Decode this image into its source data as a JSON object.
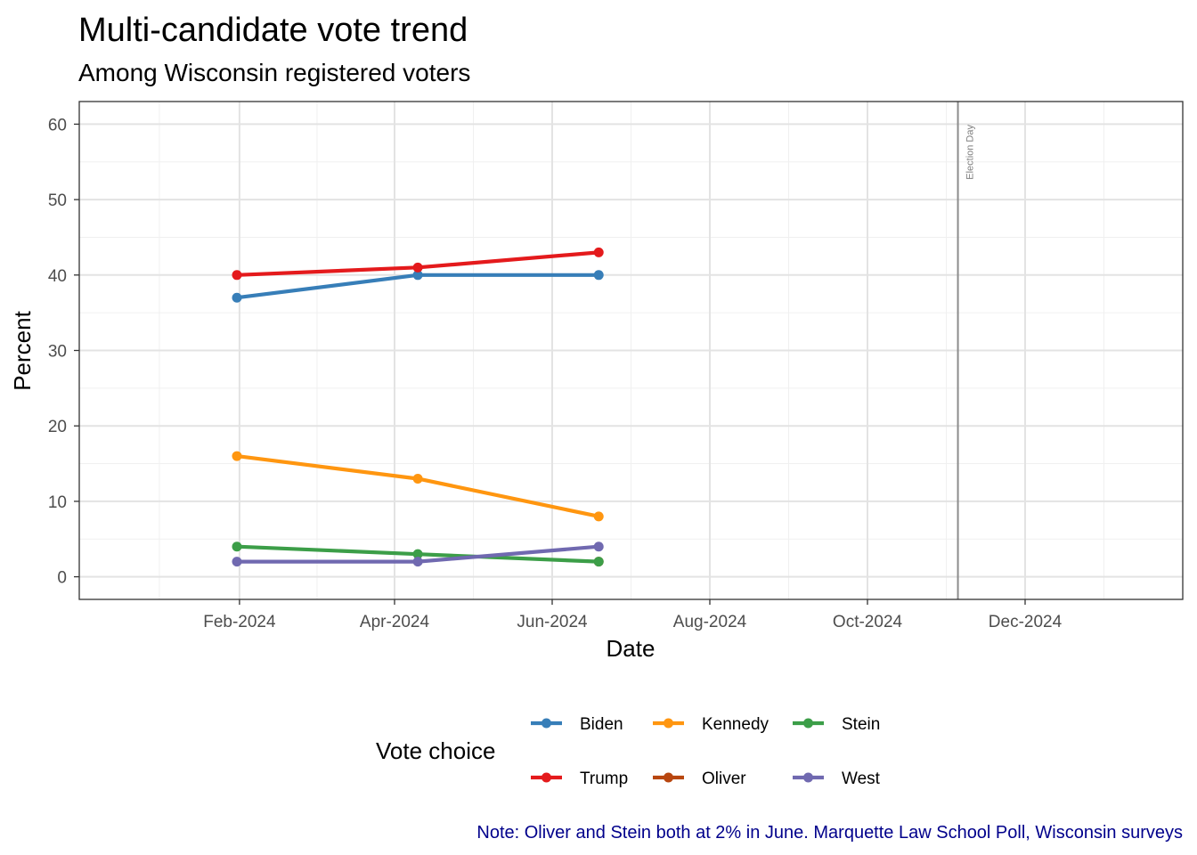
{
  "chart_data": {
    "type": "line",
    "title": "Multi-candidate vote trend",
    "subtitle": "Among Wisconsin registered voters",
    "xlabel": "Date",
    "ylabel": "Percent",
    "caption": "Note: Oliver and Stein both at 2% in June. Marquette Law School Poll, Wisconsin surveys",
    "caption_color": "#00008B",
    "grid": true,
    "legend_position": "bottom",
    "legend_title": "Vote choice",
    "ylim": [
      -3,
      63
    ],
    "yticks": [
      0,
      10,
      20,
      30,
      40,
      50,
      60
    ],
    "xlim": [
      "2023-12-01",
      "2025-01-31"
    ],
    "xticks": [
      {
        "date": "2024-02-01",
        "label": "Feb-2024"
      },
      {
        "date": "2024-04-01",
        "label": "Apr-2024"
      },
      {
        "date": "2024-06-01",
        "label": "Jun-2024"
      },
      {
        "date": "2024-08-01",
        "label": "Aug-2024"
      },
      {
        "date": "2024-10-01",
        "label": "Oct-2024"
      },
      {
        "date": "2024-12-01",
        "label": "Dec-2024"
      }
    ],
    "annotation": {
      "date": "2024-11-05",
      "label": "Election Day",
      "color": "#8c8c8c"
    },
    "x": [
      "2024-01-31",
      "2024-04-10",
      "2024-06-19"
    ],
    "series": [
      {
        "name": "Biden",
        "color": "#377EB8",
        "values": [
          37,
          40,
          40
        ]
      },
      {
        "name": "Trump",
        "color": "#E41A1C",
        "values": [
          40,
          41,
          43
        ]
      },
      {
        "name": "Kennedy",
        "color": "#FF9610",
        "values": [
          16,
          13,
          8
        ]
      },
      {
        "name": "Oliver",
        "color": "#B8460F",
        "values": [
          null,
          null,
          2
        ]
      },
      {
        "name": "Stein",
        "color": "#3C9E48",
        "values": [
          4,
          3,
          2
        ]
      },
      {
        "name": "West",
        "color": "#7069B0",
        "values": [
          2,
          2,
          4
        ]
      }
    ],
    "legend_order": [
      "Biden",
      "Kennedy",
      "Stein",
      "Trump",
      "Oliver",
      "West"
    ]
  }
}
